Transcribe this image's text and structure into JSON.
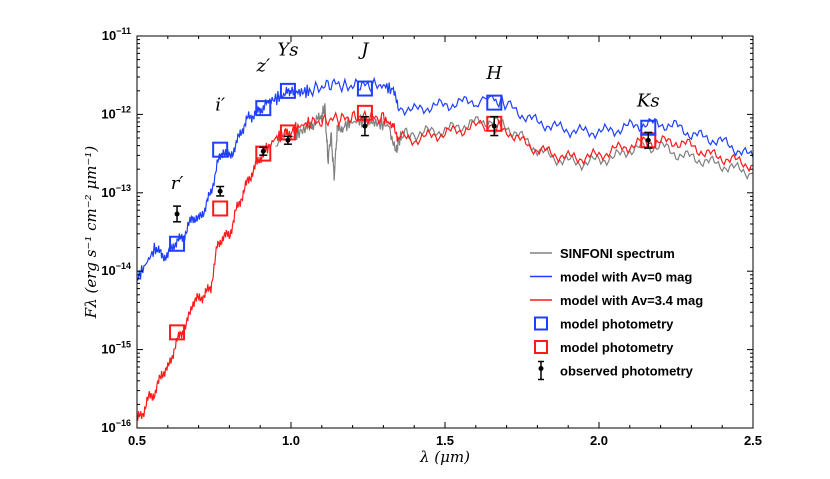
{
  "chart_data": {
    "type": "line",
    "xscale": "linear",
    "yscale": "log",
    "xlim": [
      0.5,
      2.5
    ],
    "ylim_exp": [
      -16,
      -11
    ],
    "xticks": [
      0.5,
      1.0,
      1.5,
      2.0,
      2.5
    ],
    "xtick_labels": [
      "0.5",
      "1.0",
      "1.5",
      "2.0",
      "2.5"
    ],
    "yticks_exp": [
      -16,
      -15,
      -14,
      -13,
      -12,
      -11
    ],
    "ytick_base": "10",
    "ytick_exp_labels": [
      "−16",
      "−15",
      "−14",
      "−13",
      "−12",
      "−11"
    ],
    "xlabel": "λ (μm)",
    "ylabel": "Fλ (erg s⁻¹ cm⁻² μm⁻¹)",
    "series": [
      {
        "name": "SINFONI spectrum",
        "color": "#808080",
        "x": [
          0.95,
          1.0,
          1.03,
          1.06,
          1.08,
          1.1,
          1.11,
          1.12,
          1.13,
          1.14,
          1.15,
          1.17,
          1.2,
          1.23,
          1.26,
          1.29,
          1.32,
          1.34,
          1.35,
          1.36,
          1.4,
          1.45,
          1.5,
          1.55,
          1.6,
          1.65,
          1.7,
          1.75,
          1.8,
          1.85,
          1.9,
          1.95,
          2.0,
          2.05,
          2.1,
          2.15,
          2.2,
          2.25,
          2.3,
          2.35,
          2.4,
          2.45,
          2.5
        ],
        "log": [
          -12.35,
          -12.3,
          -12.22,
          -12.15,
          -12.1,
          -12.02,
          -11.9,
          -12.6,
          -12.25,
          -12.8,
          -12.2,
          -12.15,
          -12.1,
          -12.08,
          -12.1,
          -12.12,
          -12.15,
          -12.5,
          -12.35,
          -12.25,
          -12.25,
          -12.22,
          -12.2,
          -12.15,
          -12.1,
          -12.08,
          -12.15,
          -12.3,
          -12.45,
          -12.55,
          -12.6,
          -12.62,
          -12.58,
          -12.55,
          -12.45,
          -12.42,
          -12.4,
          -12.5,
          -12.55,
          -12.6,
          -12.65,
          -12.7,
          -12.75
        ]
      },
      {
        "name": "model with Av=0 mag",
        "color": "#1f3fff",
        "x": [
          0.5,
          0.53,
          0.56,
          0.58,
          0.6,
          0.62,
          0.64,
          0.66,
          0.68,
          0.7,
          0.72,
          0.74,
          0.76,
          0.78,
          0.8,
          0.82,
          0.84,
          0.86,
          0.88,
          0.9,
          0.92,
          0.95,
          0.98,
          1.0,
          1.03,
          1.06,
          1.1,
          1.14,
          1.18,
          1.22,
          1.26,
          1.3,
          1.33,
          1.35,
          1.4,
          1.45,
          1.5,
          1.55,
          1.6,
          1.66,
          1.7,
          1.75,
          1.8,
          1.85,
          1.9,
          1.95,
          2.0,
          2.05,
          2.1,
          2.15,
          2.2,
          2.25,
          2.3,
          2.35,
          2.4,
          2.45,
          2.5
        ],
        "log": [
          -14.1,
          -13.9,
          -13.7,
          -13.8,
          -13.8,
          -13.65,
          -13.6,
          -13.5,
          -13.3,
          -13.35,
          -13.2,
          -13.0,
          -12.65,
          -12.45,
          -12.55,
          -12.4,
          -12.2,
          -12.05,
          -12.0,
          -11.95,
          -11.85,
          -11.8,
          -11.75,
          -11.7,
          -11.72,
          -11.7,
          -11.65,
          -11.6,
          -11.65,
          -11.62,
          -11.63,
          -11.62,
          -11.7,
          -11.9,
          -11.95,
          -11.9,
          -11.88,
          -11.85,
          -11.82,
          -11.82,
          -11.88,
          -12.0,
          -12.1,
          -12.15,
          -12.2,
          -12.22,
          -12.22,
          -12.2,
          -12.15,
          -12.12,
          -12.12,
          -12.15,
          -12.25,
          -12.3,
          -12.35,
          -12.45,
          -12.55
        ]
      },
      {
        "name": "model with Av=3.4 mag",
        "color": "#ff1a1a",
        "x": [
          0.5,
          0.52,
          0.54,
          0.56,
          0.58,
          0.6,
          0.62,
          0.64,
          0.66,
          0.68,
          0.7,
          0.72,
          0.74,
          0.76,
          0.78,
          0.8,
          0.82,
          0.84,
          0.86,
          0.88,
          0.9,
          0.92,
          0.95,
          0.98,
          1.0,
          1.03,
          1.06,
          1.1,
          1.14,
          1.18,
          1.22,
          1.26,
          1.3,
          1.33,
          1.35,
          1.4,
          1.45,
          1.5,
          1.55,
          1.6,
          1.66,
          1.7,
          1.75,
          1.8,
          1.85,
          1.9,
          1.95,
          2.0,
          2.05,
          2.1,
          2.15,
          2.2,
          2.25,
          2.3,
          2.35,
          2.4,
          2.45,
          2.5
        ],
        "log": [
          -15.9,
          -15.8,
          -15.6,
          -15.55,
          -15.3,
          -15.25,
          -15.0,
          -14.8,
          -14.7,
          -14.4,
          -14.35,
          -14.3,
          -14.2,
          -13.7,
          -13.55,
          -13.55,
          -13.25,
          -13.05,
          -12.85,
          -12.7,
          -12.55,
          -12.45,
          -12.3,
          -12.25,
          -12.22,
          -12.15,
          -12.1,
          -12.1,
          -12.05,
          -12.05,
          -12.03,
          -12.04,
          -12.05,
          -12.15,
          -12.3,
          -12.32,
          -12.28,
          -12.24,
          -12.2,
          -12.15,
          -12.13,
          -12.2,
          -12.35,
          -12.45,
          -12.5,
          -12.55,
          -12.55,
          -12.52,
          -12.45,
          -12.4,
          -12.35,
          -12.35,
          -12.35,
          -12.4,
          -12.5,
          -12.55,
          -12.6,
          -12.65
        ]
      }
    ],
    "model_photometry_av0": {
      "x": [
        0.63,
        0.77,
        0.91,
        0.99,
        1.24,
        1.66,
        2.16
      ],
      "log": [
        -13.65,
        -12.45,
        -11.92,
        -11.7,
        -11.67,
        -11.85,
        -12.17
      ]
    },
    "model_photometry_av34": {
      "x": [
        0.63,
        0.77,
        0.91,
        0.99,
        1.24,
        1.66,
        2.16
      ],
      "log": [
        -14.78,
        -13.2,
        -12.5,
        -12.23,
        -11.98,
        -12.12,
        -12.33
      ]
    },
    "observed_photometry": {
      "x": [
        0.63,
        0.77,
        0.91,
        0.99,
        1.24,
        1.66,
        2.16
      ],
      "log": [
        -13.27,
        -12.98,
        -12.47,
        -12.33,
        -12.15,
        -12.15,
        -12.33
      ],
      "err_low": [
        0.1,
        0.06,
        0.05,
        0.05,
        0.12,
        0.12,
        0.1
      ],
      "err_high": [
        0.1,
        0.06,
        0.05,
        0.05,
        0.12,
        0.12,
        0.1
      ]
    },
    "band_labels": [
      {
        "text": "r′",
        "x": 0.63,
        "log": -12.95
      },
      {
        "text": "i′",
        "x": 0.77,
        "log": -11.95
      },
      {
        "text": "z′",
        "x": 0.91,
        "log": -11.45
      },
      {
        "text": "Ys",
        "x": 0.99,
        "log": -11.25
      },
      {
        "text": "J",
        "x": 1.24,
        "log": -11.25
      },
      {
        "text": "H",
        "x": 1.66,
        "log": -11.55
      },
      {
        "text": "Ks",
        "x": 2.16,
        "log": -11.9
      }
    ],
    "legend": {
      "position": "lower-right",
      "entries": [
        {
          "label": "SINFONI spectrum",
          "kind": "line",
          "color": "#808080"
        },
        {
          "label": "model with Av=0 mag",
          "kind": "line",
          "color": "#1f3fff"
        },
        {
          "label": "model with Av=3.4 mag",
          "kind": "line",
          "color": "#ff1a1a"
        },
        {
          "label": "model photometry",
          "kind": "square",
          "color": "#1f3fff"
        },
        {
          "label": "model photometry",
          "kind": "square",
          "color": "#ff1a1a"
        },
        {
          "label": "observed photometry",
          "kind": "errorbar",
          "color": "#000000"
        }
      ]
    }
  }
}
